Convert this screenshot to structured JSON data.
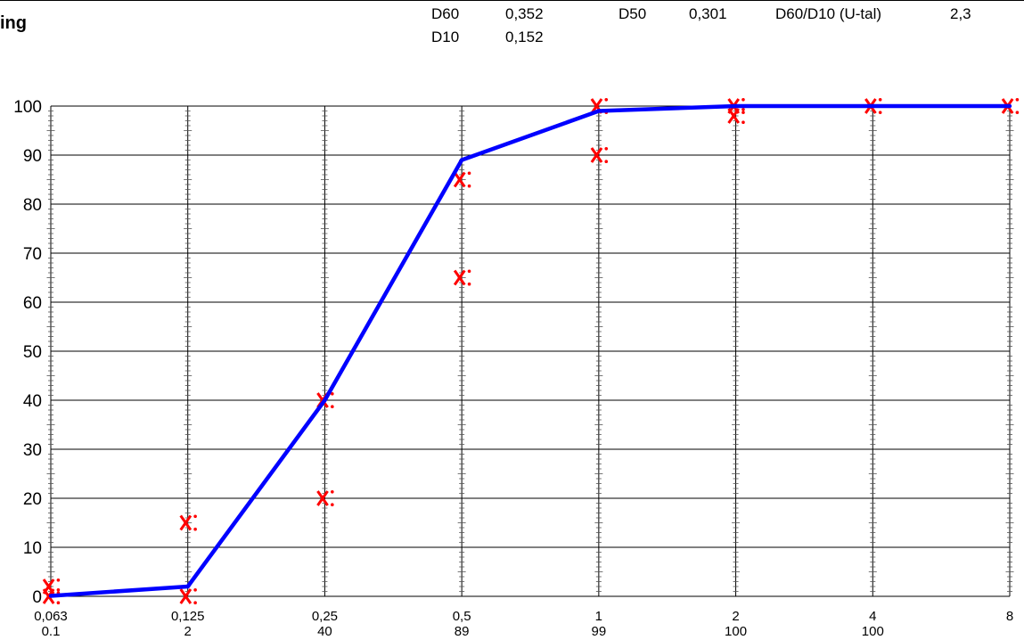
{
  "header": {
    "title": "ing",
    "stats": [
      {
        "label": "D60",
        "value": "0,352"
      },
      {
        "label": "D10",
        "value": "0,152"
      },
      {
        "label": "D50",
        "value": "0,301"
      },
      {
        "label": "D60/D10 (U-tal)",
        "value": "2,3"
      }
    ]
  },
  "chart_data": {
    "type": "line",
    "title": "",
    "xlabel": "",
    "ylabel": "",
    "ylim": [
      0,
      100
    ],
    "yticks": [
      0,
      10,
      20,
      30,
      40,
      50,
      60,
      70,
      80,
      90,
      100
    ],
    "grid": true,
    "categories": [
      "0,063",
      "0,125",
      "0,25",
      "0,5",
      "1",
      "2",
      "4",
      "8"
    ],
    "passing_labels": [
      "0.1",
      "2",
      "40",
      "89",
      "99",
      "100",
      "100",
      ""
    ],
    "series": [
      {
        "values": [
          0.1,
          2,
          40,
          89,
          99,
          100,
          100,
          100
        ],
        "color": "#0000ff"
      }
    ],
    "limit_points": [
      {
        "category": "0,063",
        "value": 2
      },
      {
        "category": "0,063",
        "value": 0
      },
      {
        "category": "0,125",
        "value": 15
      },
      {
        "category": "0,125",
        "value": 0
      },
      {
        "category": "0,25",
        "value": 40
      },
      {
        "category": "0,25",
        "value": 20
      },
      {
        "category": "0,5",
        "value": 85
      },
      {
        "category": "0,5",
        "value": 65
      },
      {
        "category": "1",
        "value": 100
      },
      {
        "category": "1",
        "value": 90
      },
      {
        "category": "2",
        "value": 100
      },
      {
        "category": "2",
        "value": 98
      },
      {
        "category": "4",
        "value": 100
      },
      {
        "category": "8",
        "value": 100
      }
    ],
    "marker_color": "#ff0000"
  }
}
